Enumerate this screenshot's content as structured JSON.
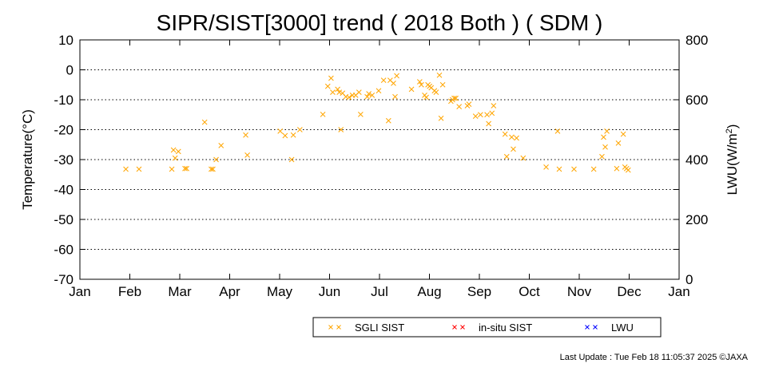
{
  "chart_data": {
    "type": "scatter",
    "title": "SIPR/SIST[3000] trend ( 2018 Both ) ( SDM )",
    "ylabel": "Temperature(°C)",
    "y2label_main": "LWU(W/m",
    "y2label_sup": "2",
    "y2label_end": ")",
    "ylim": [
      -70,
      10
    ],
    "y2lim": [
      0,
      800
    ],
    "yticks": [
      "10",
      "0",
      "-10",
      "-20",
      "-30",
      "-40",
      "-50",
      "-60",
      "-70"
    ],
    "y2ticks": [
      "800",
      "600",
      "400",
      "200",
      "0"
    ],
    "xticks": [
      "Jan",
      "Feb",
      "Mar",
      "Apr",
      "May",
      "Jun",
      "Jul",
      "Aug",
      "Sep",
      "Oct",
      "Nov",
      "Dec",
      "Jan"
    ],
    "grid": "horizontal-dotted",
    "legend_position": "bottom",
    "series": [
      {
        "name": "SGLI SIST",
        "color": "#ffa500",
        "marker": "x",
        "points": [
          [
            "2018-01-29",
            -33.2
          ],
          [
            "2018-02-06",
            -33.2
          ],
          [
            "2018-02-26",
            -33.2
          ],
          [
            "2018-02-27",
            -26.8
          ],
          [
            "2018-02-28",
            -29.5
          ],
          [
            "2018-03-02",
            -27.3
          ],
          [
            "2018-03-06",
            -33.0
          ],
          [
            "2018-03-07",
            -33.0
          ],
          [
            "2018-03-18",
            -17.5
          ],
          [
            "2018-03-22",
            -33.2
          ],
          [
            "2018-03-23",
            -33.2
          ],
          [
            "2018-03-25",
            -30.0
          ],
          [
            "2018-03-28",
            -25.3
          ],
          [
            "2018-04-12",
            -21.8
          ],
          [
            "2018-04-13",
            -28.5
          ],
          [
            "2018-05-03",
            -20.5
          ],
          [
            "2018-05-06",
            -22.0
          ],
          [
            "2018-05-10",
            -30.0
          ],
          [
            "2018-05-11",
            -21.8
          ],
          [
            "2018-05-15",
            -20.0
          ],
          [
            "2018-05-29",
            -14.9
          ],
          [
            "2018-06-01",
            -5.5
          ],
          [
            "2018-06-03",
            -2.8
          ],
          [
            "2018-06-04",
            -7.5
          ],
          [
            "2018-06-07",
            -6.5
          ],
          [
            "2018-06-08",
            -7.5
          ],
          [
            "2018-06-09",
            -20.0
          ],
          [
            "2018-06-10",
            -7.8
          ],
          [
            "2018-06-12",
            -9.0
          ],
          [
            "2018-06-14",
            -9.2
          ],
          [
            "2018-06-16",
            -8.5
          ],
          [
            "2018-06-18",
            -8.5
          ],
          [
            "2018-06-20",
            -7.5
          ],
          [
            "2018-06-21",
            -14.9
          ],
          [
            "2018-06-25",
            -9.0
          ],
          [
            "2018-06-26",
            -8.0
          ],
          [
            "2018-06-28",
            -8.5
          ],
          [
            "2018-07-02",
            -7.0
          ],
          [
            "2018-07-05",
            -3.5
          ],
          [
            "2018-07-08",
            -17.0
          ],
          [
            "2018-07-09",
            -3.5
          ],
          [
            "2018-07-11",
            -4.5
          ],
          [
            "2018-07-12",
            -9.0
          ],
          [
            "2018-07-13",
            -2.0
          ],
          [
            "2018-07-22",
            -6.5
          ],
          [
            "2018-07-27",
            -4.0
          ],
          [
            "2018-07-28",
            -5.0
          ],
          [
            "2018-07-30",
            -8.5
          ],
          [
            "2018-07-31",
            -9.2
          ],
          [
            "2018-08-01",
            -5.0
          ],
          [
            "2018-08-02",
            -5.5
          ],
          [
            "2018-08-03",
            -6.0
          ],
          [
            "2018-08-05",
            -7.0
          ],
          [
            "2018-08-06",
            -7.5
          ],
          [
            "2018-08-08",
            -1.8
          ],
          [
            "2018-08-09",
            -16.2
          ],
          [
            "2018-08-10",
            -5.0
          ],
          [
            "2018-08-15",
            -10.5
          ],
          [
            "2018-08-16",
            -10.0
          ],
          [
            "2018-08-17",
            -9.5
          ],
          [
            "2018-08-18",
            -9.5
          ],
          [
            "2018-08-20",
            -12.3
          ],
          [
            "2018-08-25",
            -12.0
          ],
          [
            "2018-08-26",
            -11.5
          ],
          [
            "2018-08-30",
            -15.5
          ],
          [
            "2018-09-02",
            -15.0
          ],
          [
            "2018-09-06",
            -15.0
          ],
          [
            "2018-09-07",
            -18.0
          ],
          [
            "2018-09-09",
            -14.5
          ],
          [
            "2018-09-10",
            -12.0
          ],
          [
            "2018-09-17",
            -21.5
          ],
          [
            "2018-09-18",
            -29.0
          ],
          [
            "2018-09-21",
            -22.5
          ],
          [
            "2018-09-22",
            -26.5
          ],
          [
            "2018-09-24",
            -22.8
          ],
          [
            "2018-09-28",
            -29.5
          ],
          [
            "2018-10-12",
            -32.5
          ],
          [
            "2018-10-19",
            -20.5
          ],
          [
            "2018-10-20",
            -33.2
          ],
          [
            "2018-10-29",
            -33.2
          ],
          [
            "2018-11-10",
            -33.2
          ],
          [
            "2018-11-15",
            -29.0
          ],
          [
            "2018-11-16",
            -22.5
          ],
          [
            "2018-11-17",
            -25.8
          ],
          [
            "2018-11-18",
            -20.5
          ],
          [
            "2018-11-24",
            -33.0
          ],
          [
            "2018-11-25",
            -24.5
          ],
          [
            "2018-11-28",
            -21.5
          ],
          [
            "2018-11-29",
            -32.5
          ],
          [
            "2018-11-30",
            -33.0
          ],
          [
            "2018-12-01",
            -33.5
          ]
        ]
      },
      {
        "name": "in-situ SIST",
        "color": "#ff0000",
        "marker": "x",
        "points": []
      },
      {
        "name": "LWU",
        "color": "#0000ff",
        "marker": "x",
        "points": []
      }
    ]
  },
  "footer": {
    "text": "Last Update : Tue Feb 18 11:05:37 2025  ©JAXA"
  }
}
